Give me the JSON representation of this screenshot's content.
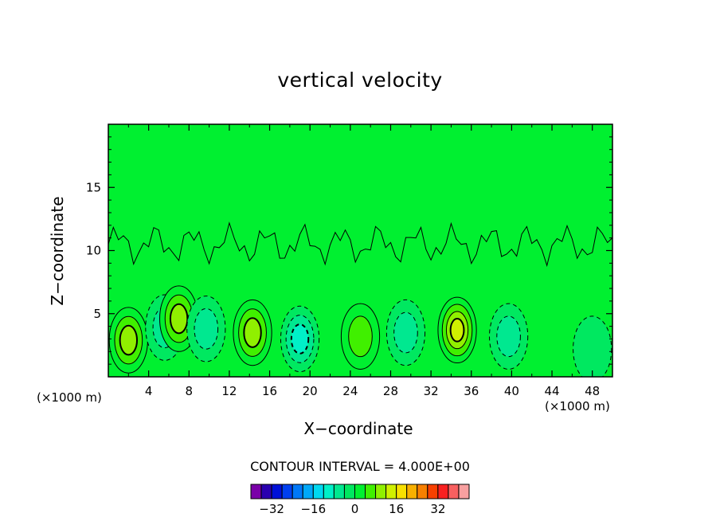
{
  "chart_data": {
    "type": "heatmap",
    "title": "vertical velocity",
    "xlabel": "X−coordinate",
    "ylabel": "Z−coordinate",
    "x_unit_label": "(×1000 m)",
    "y_unit_label": "(×1000 m)",
    "xlim": [
      0,
      50
    ],
    "ylim": [
      0,
      20
    ],
    "x_ticks": [
      "4",
      "8",
      "12",
      "16",
      "20",
      "24",
      "28",
      "32",
      "36",
      "40",
      "44",
      "48"
    ],
    "y_ticks": [
      "5",
      "10",
      "15"
    ],
    "contour_interval_label": "CONTOUR INTERVAL = 4.000E+00",
    "contour_interval": 4,
    "background_value": 0,
    "colorbar": {
      "levels": [
        -40,
        -36,
        -32,
        -28,
        -24,
        -20,
        -16,
        -12,
        -8,
        -4,
        0,
        4,
        8,
        12,
        16,
        20,
        24,
        28,
        32,
        36,
        40
      ],
      "colors": [
        "#7a00a8",
        "#2a00b0",
        "#0010d8",
        "#0040f0",
        "#0078f8",
        "#00a8f8",
        "#00d8f0",
        "#00f0c8",
        "#00e890",
        "#00e860",
        "#00f030",
        "#40f000",
        "#90f000",
        "#d0f000",
        "#f8e000",
        "#f8b000",
        "#f88000",
        "#f84000",
        "#f82020",
        "#f86060",
        "#f8a0a0"
      ],
      "tick_labels": [
        "−32",
        "−16",
        "0",
        "16",
        "32"
      ]
    },
    "cells": [
      {
        "x": 2.0,
        "z": 2.9,
        "value": 12,
        "sign": "up"
      },
      {
        "x": 5.6,
        "z": 3.9,
        "value": -8,
        "sign": "down"
      },
      {
        "x": 7.0,
        "z": 4.6,
        "value": 12,
        "sign": "up"
      },
      {
        "x": 9.7,
        "z": 3.8,
        "value": -8,
        "sign": "down"
      },
      {
        "x": 14.3,
        "z": 3.5,
        "value": 12,
        "sign": "up"
      },
      {
        "x": 19.0,
        "z": 3.0,
        "value": -12,
        "sign": "down"
      },
      {
        "x": 25.0,
        "z": 3.2,
        "value": 6,
        "sign": "up"
      },
      {
        "x": 29.5,
        "z": 3.5,
        "value": -8,
        "sign": "down"
      },
      {
        "x": 34.6,
        "z": 3.7,
        "value": 16,
        "sign": "up"
      },
      {
        "x": 39.7,
        "z": 3.2,
        "value": -6,
        "sign": "down"
      },
      {
        "x": 48.0,
        "z": 2.2,
        "value": -4,
        "sign": "down"
      }
    ]
  }
}
